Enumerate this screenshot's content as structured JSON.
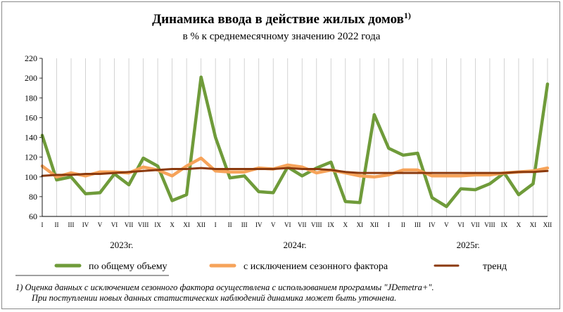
{
  "chart_data": {
    "type": "line",
    "title": "Динамика ввода в действие жилых домов",
    "title_sup": "1)",
    "subtitle": "в % к среднемесячному значению 2022  года",
    "ylim": [
      60,
      220
    ],
    "y_ticks": [
      60,
      80,
      100,
      120,
      140,
      160,
      180,
      200,
      220
    ],
    "month_labels": [
      "I",
      "II",
      "III",
      "IV",
      "V",
      "VI",
      "VII",
      "VIII",
      "IX",
      "X",
      "XI",
      "XII",
      "I",
      "II",
      "III",
      "IV",
      "V",
      "VI",
      "VII",
      "VIII",
      "IX",
      "X",
      "XI",
      "XII",
      "I",
      "II",
      "III",
      "IV",
      "V",
      "VI",
      "VII",
      "VIII",
      "IX",
      "X",
      "XI",
      "XII"
    ],
    "years": [
      "2023г.",
      "2024г.",
      "2025г."
    ],
    "grid": "vertical",
    "legend_position": "bottom",
    "series": [
      {
        "name": "по общему  объему",
        "color": "#6f9b3a",
        "values": [
          142,
          97,
          100,
          83,
          84,
          103,
          92,
          119,
          111,
          76,
          82,
          201,
          140,
          99,
          101,
          85,
          84,
          110,
          101,
          109,
          115,
          75,
          74,
          163,
          129,
          122,
          124,
          79,
          70,
          88,
          87,
          93,
          104,
          82,
          93,
          194
        ]
      },
      {
        "name": "с исключением  сезонного фактора",
        "color": "#f6a35a",
        "values": [
          111,
          100,
          104,
          101,
          105,
          105,
          104,
          110,
          107,
          101,
          111,
          119,
          106,
          105,
          105,
          109,
          108,
          112,
          110,
          104,
          107,
          104,
          101,
          100,
          102,
          107,
          107,
          101,
          101,
          101,
          102,
          102,
          104,
          105,
          106,
          109
        ]
      },
      {
        "name": "тренд",
        "color": "#8b3a0e",
        "values": [
          101,
          102,
          102,
          103,
          103,
          104,
          105,
          106,
          107,
          108,
          108,
          109,
          108,
          108,
          108,
          108,
          108,
          109,
          108,
          108,
          107,
          105,
          104,
          104,
          104,
          104,
          104,
          104,
          104,
          104,
          104,
          104,
          104,
          105,
          105,
          106
        ]
      }
    ]
  },
  "footnote": {
    "line1": "1)  Оценка данных с исключением сезонного фактора осуществлена с использованием программы \"JDemetra+\".",
    "line2": "При поступлении новых данных статистических наблюдений динамика может быть уточнена."
  }
}
